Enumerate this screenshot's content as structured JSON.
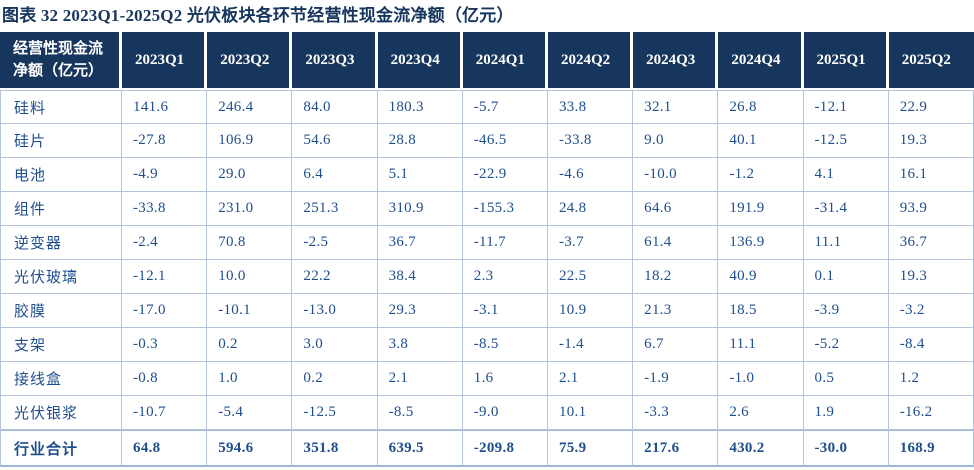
{
  "title": "图表 32  2023Q1-2025Q2 光伏板块各环节经营性现金流净额（亿元）",
  "colors": {
    "header_bg": "#17365D",
    "body_text": "#1F4E8C",
    "title": "#17365D",
    "grid": "#b5c3da"
  },
  "table": {
    "corner_header": "经营性现金流\n净额（亿元）",
    "columns": [
      "2023Q1",
      "2023Q2",
      "2023Q3",
      "2023Q4",
      "2024Q1",
      "2024Q2",
      "2024Q3",
      "2024Q4",
      "2025Q1",
      "2025Q2"
    ],
    "rows": [
      {
        "label": "硅料",
        "is_total": false,
        "values": [
          "141.6",
          "246.4",
          "84.0",
          "180.3",
          "-5.7",
          "33.8",
          "32.1",
          "26.8",
          "-12.1",
          "22.9"
        ]
      },
      {
        "label": "硅片",
        "is_total": false,
        "values": [
          "-27.8",
          "106.9",
          "54.6",
          "28.8",
          "-46.5",
          "-33.8",
          "9.0",
          "40.1",
          "-12.5",
          "19.3"
        ]
      },
      {
        "label": "电池",
        "is_total": false,
        "values": [
          "-4.9",
          "29.0",
          "6.4",
          "5.1",
          "-22.9",
          "-4.6",
          "-10.0",
          "-1.2",
          "4.1",
          "16.1"
        ]
      },
      {
        "label": "组件",
        "is_total": false,
        "values": [
          "-33.8",
          "231.0",
          "251.3",
          "310.9",
          "-155.3",
          "24.8",
          "64.6",
          "191.9",
          "-31.4",
          "93.9"
        ]
      },
      {
        "label": "逆变器",
        "is_total": false,
        "values": [
          "-2.4",
          "70.8",
          "-2.5",
          "36.7",
          "-11.7",
          "-3.7",
          "61.4",
          "136.9",
          "11.1",
          "36.7"
        ]
      },
      {
        "label": "光伏玻璃",
        "is_total": false,
        "values": [
          "-12.1",
          "10.0",
          "22.2",
          "38.4",
          "2.3",
          "22.5",
          "18.2",
          "40.9",
          "0.1",
          "19.3"
        ]
      },
      {
        "label": "胶膜",
        "is_total": false,
        "values": [
          "-17.0",
          "-10.1",
          "-13.0",
          "29.3",
          "-3.1",
          "10.9",
          "21.3",
          "18.5",
          "-3.9",
          "-3.2"
        ]
      },
      {
        "label": "支架",
        "is_total": false,
        "values": [
          "-0.3",
          "0.2",
          "3.0",
          "3.8",
          "-8.5",
          "-1.4",
          "6.7",
          "11.1",
          "-5.2",
          "-8.4"
        ]
      },
      {
        "label": "接线盒",
        "is_total": false,
        "values": [
          "-0.8",
          "1.0",
          "0.2",
          "2.1",
          "1.6",
          "2.1",
          "-1.9",
          "-1.0",
          "0.5",
          "1.2"
        ]
      },
      {
        "label": "光伏银浆",
        "is_total": false,
        "values": [
          "-10.7",
          "-5.4",
          "-12.5",
          "-8.5",
          "-9.0",
          "10.1",
          "-3.3",
          "2.6",
          "1.9",
          "-16.2"
        ]
      },
      {
        "label": "行业合计",
        "is_total": true,
        "values": [
          "64.8",
          "594.6",
          "351.8",
          "639.5",
          "-209.8",
          "75.9",
          "217.6",
          "430.2",
          "-30.0",
          "168.9"
        ]
      }
    ]
  }
}
